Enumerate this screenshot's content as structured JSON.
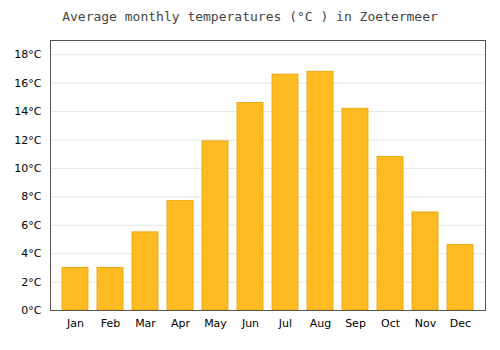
{
  "chart_data": {
    "type": "bar",
    "title": "Average monthly temperatures (°C ) in Zoetermeer",
    "categories": [
      "Jan",
      "Feb",
      "Mar",
      "Apr",
      "May",
      "Jun",
      "Jul",
      "Aug",
      "Sep",
      "Oct",
      "Nov",
      "Dec"
    ],
    "values": [
      3.0,
      3.0,
      5.5,
      7.7,
      11.9,
      14.6,
      16.6,
      16.8,
      14.2,
      10.8,
      6.9,
      4.6
    ],
    "color": "#FFBB22",
    "ylim": [
      0,
      19
    ],
    "yticks": [
      {
        "value": 0,
        "label": "0°C"
      },
      {
        "value": 2,
        "label": "2°C"
      },
      {
        "value": 4,
        "label": "4°C"
      },
      {
        "value": 6,
        "label": "6°C"
      },
      {
        "value": 8,
        "label": "8°C"
      },
      {
        "value": 10,
        "label": "10°C"
      },
      {
        "value": 12,
        "label": "12°C"
      },
      {
        "value": 14,
        "label": "14°C"
      },
      {
        "value": 16,
        "label": "16°C"
      },
      {
        "value": 18,
        "label": "18°C"
      }
    ],
    "grid": true
  }
}
